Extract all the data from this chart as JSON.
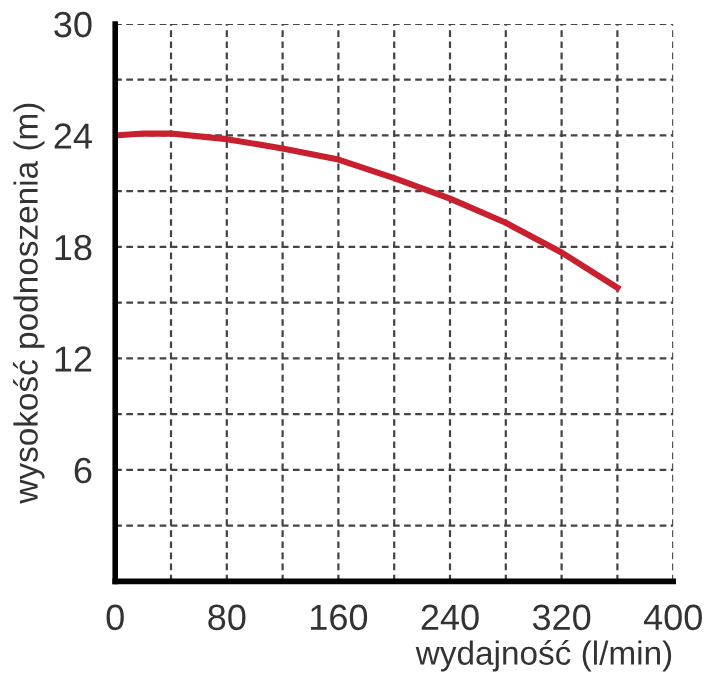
{
  "chart_data": {
    "type": "line",
    "xlabel": "wydajność (l/min)",
    "ylabel": "wysokość podnoszenia (m)",
    "x": [
      0,
      20,
      40,
      80,
      120,
      160,
      200,
      240,
      280,
      320,
      360
    ],
    "series": [
      {
        "color": "#c8202f",
        "values": [
          24.0,
          24.1,
          24.1,
          23.8,
          23.3,
          22.7,
          21.7,
          20.6,
          19.3,
          17.7,
          15.8
        ]
      }
    ],
    "xlim": [
      0,
      400
    ],
    "ylim": [
      0,
      30
    ],
    "xticks": [
      0,
      {
        "value": 40,
        "label": null
      },
      80,
      {
        "value": 120,
        "label": null
      },
      160,
      {
        "value": 200,
        "label": null
      },
      240,
      {
        "value": 280,
        "label": null
      },
      320,
      {
        "value": 360,
        "label": null
      },
      400
    ],
    "yticks": [
      {
        "value": 0,
        "label": null
      },
      {
        "value": 3,
        "label": null
      },
      6,
      {
        "value": 9,
        "label": null
      },
      12,
      {
        "value": 15,
        "label": null
      },
      18,
      {
        "value": 21,
        "label": null
      },
      24,
      {
        "value": 27,
        "label": null
      },
      30
    ],
    "grid": true,
    "legend": false,
    "marker": "none",
    "line_style": "solid"
  }
}
